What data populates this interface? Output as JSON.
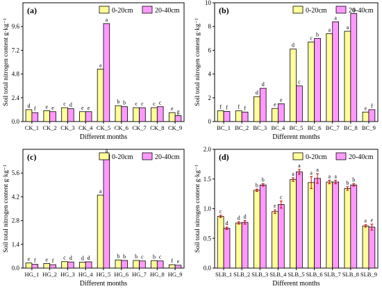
{
  "colors": {
    "s0": "#ffff99",
    "s1": "#ff99ff",
    "axis": "#000000",
    "err": "#cc0000"
  },
  "chart_data": [
    {
      "type": "bar",
      "panel_label": "(a)",
      "ylabel": "Soil total nitrogen content g·kg⁻¹",
      "xlabel": "Different months",
      "categories": [
        "CK_1",
        "CK_2",
        "CK_3",
        "CK_4",
        "CK_5",
        "CK_6",
        "CK_7",
        "CK_8",
        "CK_9"
      ],
      "yticks": [
        "0.0",
        "2.4",
        "4.8",
        "7.2",
        "9.6"
      ],
      "ylim": [
        0,
        12
      ],
      "legend": {
        "placement": "top-right",
        "entries": [
          "0-20cm",
          "20-40cm"
        ]
      },
      "series": [
        {
          "name": "0-20cm",
          "values": [
            1.2,
            1.1,
            1.4,
            1.0,
            5.3,
            1.6,
            1.4,
            1.4,
            0.9
          ],
          "letters": [
            "d",
            "e",
            "c",
            "e",
            "a",
            "b",
            "c",
            "c",
            "e"
          ]
        },
        {
          "name": "20-40cm",
          "values": [
            0.9,
            1.0,
            1.3,
            1.0,
            9.9,
            1.5,
            1.4,
            1.5,
            0.6
          ],
          "letters": [
            "f",
            "e",
            "d",
            "e",
            "a",
            "b",
            "c",
            "c",
            "g"
          ]
        }
      ]
    },
    {
      "type": "bar",
      "panel_label": "(b)",
      "ylabel": "Soil total nitrogen content g·kg⁻¹",
      "xlabel": "Different months",
      "categories": [
        "BC_1",
        "BC_2",
        "BC_3",
        "BC_4",
        "BC_5",
        "BC_6",
        "BC_7",
        "BC_8",
        "BC_9"
      ],
      "yticks": [
        "0",
        "2",
        "4",
        "6",
        "8",
        "10"
      ],
      "ylim": [
        0,
        10
      ],
      "legend": {
        "placement": "top-right",
        "entries": [
          "0-20cm",
          "20-40cm"
        ]
      },
      "series": [
        {
          "name": "0-20cm",
          "values": [
            0.9,
            0.9,
            2.1,
            1.1,
            6.1,
            6.7,
            7.4,
            7.6,
            0.8
          ],
          "letters": [
            "f",
            "f",
            "d",
            "e",
            "d",
            "c",
            "a",
            "a",
            "e"
          ]
        },
        {
          "name": "20-40cm",
          "values": [
            0.85,
            0.8,
            2.8,
            1.5,
            3.0,
            7.0,
            8.4,
            9.1,
            1.0
          ],
          "letters": [
            "f",
            "f",
            "d",
            "e",
            "c",
            "b",
            "a",
            "a",
            "f"
          ]
        }
      ]
    },
    {
      "type": "bar",
      "panel_label": "(c)",
      "ylabel": "Soil total nitrogen content g·kg⁻¹",
      "xlabel": "Different months",
      "categories": [
        "HG_1",
        "HG_2",
        "HG_3",
        "HG_4",
        "HG_5",
        "HG_6",
        "HG_7",
        "HG_8",
        "HG_9"
      ],
      "yticks": [
        "0.0",
        "1.4",
        "2.8",
        "4.2",
        "5.6"
      ],
      "ylim": [
        0,
        7
      ],
      "legend": {
        "placement": "top-right",
        "entries": [
          "0-20cm",
          "20-40cm"
        ]
      },
      "series": [
        {
          "name": "0-20cm",
          "values": [
            0.3,
            0.27,
            0.38,
            0.35,
            4.3,
            0.48,
            0.45,
            0.44,
            0.2
          ],
          "letters": [
            "e",
            "e",
            "c",
            "d",
            "a",
            "b",
            "b",
            "b",
            "f"
          ]
        },
        {
          "name": "20-40cm",
          "values": [
            0.22,
            0.2,
            0.36,
            0.37,
            6.7,
            0.45,
            0.42,
            0.42,
            0.17
          ],
          "letters": [
            "f",
            "f",
            "d",
            "d",
            "a",
            "b",
            "c",
            "c",
            "e"
          ]
        }
      ]
    },
    {
      "type": "bar",
      "panel_label": "(d)",
      "ylabel": "Soil total nitrogen content g·kg⁻¹",
      "xlabel": "Different months",
      "categories": [
        "SLB_1",
        "SLB_2",
        "SLB_3",
        "SLB_4",
        "SLB_5",
        "SLB_6",
        "SLB_7",
        "SLB_8",
        "SLB_9"
      ],
      "yticks": [
        "0.0",
        "0.5",
        "1.0",
        "1.5",
        "2.0"
      ],
      "ylim": [
        0,
        2.0
      ],
      "legend": {
        "placement": "top-right",
        "entries": [
          "0-20cm",
          "20-40cm"
        ]
      },
      "series": [
        {
          "name": "0-20cm",
          "values": [
            0.87,
            0.76,
            1.31,
            0.95,
            1.49,
            1.44,
            1.45,
            1.34,
            0.71
          ],
          "errors": [
            0.02,
            0.02,
            0.02,
            0.03,
            0.03,
            0.1,
            0.03,
            0.03,
            0.02
          ],
          "letters": [
            "c",
            "d",
            "b",
            "e",
            "a",
            "a",
            "a",
            "b",
            "e"
          ]
        },
        {
          "name": "20-40cm",
          "values": [
            0.67,
            0.77,
            1.4,
            1.07,
            1.62,
            1.51,
            1.45,
            1.4,
            0.69
          ],
          "errors": [
            0.02,
            0.03,
            0.02,
            0.06,
            0.04,
            0.08,
            0.03,
            0.02,
            0.05
          ],
          "letters": [
            "d",
            "d",
            "b",
            "c",
            "a",
            "a",
            "a",
            "b",
            "e"
          ]
        }
      ]
    }
  ]
}
